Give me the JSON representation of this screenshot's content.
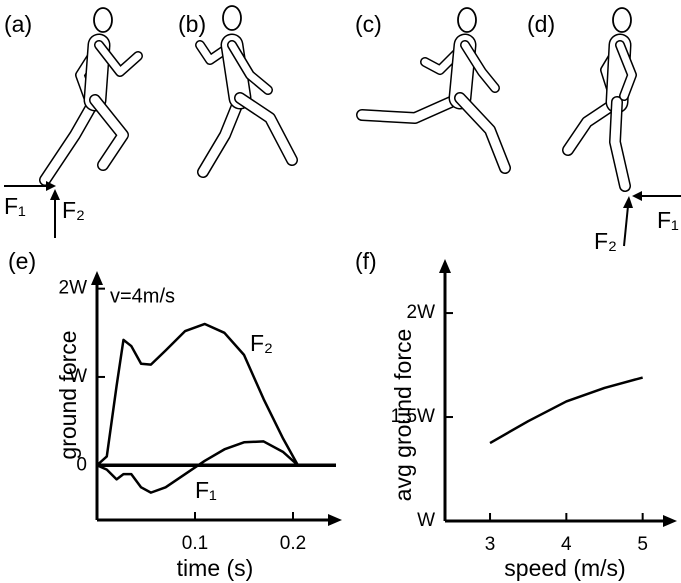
{
  "panels": {
    "labels": [
      "(a)",
      "(b)",
      "(c)",
      "(d)"
    ]
  },
  "forces": {
    "a": [
      "F₁",
      "F₂"
    ],
    "d": [
      "F₁",
      "F₂"
    ]
  },
  "chart_data": [
    {
      "type": "line",
      "title": "(e)",
      "annotation": "v=4m/s",
      "x_label": "time (s)",
      "y_label": "ground force",
      "x": [
        0,
        0.01,
        0.02,
        0.027,
        0.035,
        0.045,
        0.055,
        0.07,
        0.09,
        0.11,
        0.13,
        0.15,
        0.17,
        0.19,
        0.205
      ],
      "series": [
        {
          "name": "F₂",
          "color": "#000000",
          "values": [
            0,
            0.1,
            0.9,
            1.42,
            1.35,
            1.15,
            1.14,
            1.3,
            1.52,
            1.6,
            1.5,
            1.25,
            0.75,
            0.3,
            0
          ]
        },
        {
          "name": "F₁",
          "color": "#000000",
          "values": [
            0,
            -0.05,
            -0.16,
            -0.1,
            -0.1,
            -0.25,
            -0.31,
            -0.25,
            -0.1,
            0.05,
            0.18,
            0.26,
            0.27,
            0.15,
            0
          ]
        }
      ],
      "xlim": [
        0,
        0.25
      ],
      "xticks": [
        0.1,
        0.2
      ],
      "ylim": [
        -0.62,
        2.2
      ],
      "yticks": [
        0,
        {
          "value": 1,
          "label": "W"
        },
        {
          "value": 2,
          "label": "2W"
        }
      ]
    },
    {
      "type": "line",
      "title": "(f)",
      "x_label": "speed (m/s)",
      "y_label": "avg ground force",
      "x": [
        3,
        3.5,
        4,
        4.5,
        5
      ],
      "series": [
        {
          "color": "#000000",
          "values": [
            1.375,
            1.48,
            1.575,
            1.64,
            1.69
          ]
        }
      ],
      "xlim": [
        2.41,
        5.45
      ],
      "xticks": [
        3,
        4,
        5
      ],
      "ylim": [
        1,
        2.26
      ],
      "yticks": [
        {
          "value": 1,
          "label": "W"
        },
        {
          "value": 1.5,
          "label": "1.5W"
        },
        {
          "value": 2,
          "label": "2W"
        }
      ]
    }
  ]
}
